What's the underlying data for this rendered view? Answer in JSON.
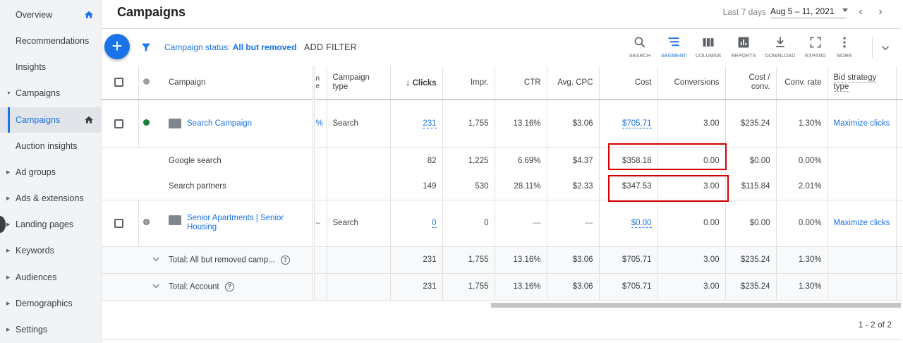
{
  "sidebar": {
    "items": [
      {
        "label": "Overview",
        "caret": false,
        "home": true,
        "active": false
      },
      {
        "label": "Recommendations",
        "caret": false,
        "home": false,
        "active": false
      },
      {
        "label": "Insights",
        "caret": false,
        "home": false,
        "active": false
      },
      {
        "label": "Campaigns",
        "caret": true,
        "caret_dir": "down",
        "home": false,
        "active": false
      },
      {
        "label": "Campaigns",
        "caret": false,
        "home": true,
        "active": true
      },
      {
        "label": "Auction insights",
        "caret": false,
        "home": false,
        "active": false
      },
      {
        "label": "Ad groups",
        "caret": true,
        "home": false,
        "active": false
      },
      {
        "label": "Ads & extensions",
        "caret": true,
        "home": false,
        "active": false
      },
      {
        "label": "Landing pages",
        "caret": true,
        "home": false,
        "active": false
      },
      {
        "label": "Keywords",
        "caret": true,
        "home": false,
        "active": false
      },
      {
        "label": "Audiences",
        "caret": true,
        "home": false,
        "active": false
      },
      {
        "label": "Demographics",
        "caret": true,
        "home": false,
        "active": false
      },
      {
        "label": "Settings",
        "caret": true,
        "home": false,
        "active": false
      }
    ]
  },
  "header": {
    "title": "Campaigns",
    "range_label": "Last 7 days",
    "dates": "Aug 5 – 11, 2021"
  },
  "toolbar": {
    "add": "+",
    "filter_prefix": "Campaign status: ",
    "filter_value": "All but removed",
    "add_filter": "ADD FILTER",
    "tools": [
      {
        "label": "SEARCH",
        "icon": "search-icon"
      },
      {
        "label": "SEGMENT",
        "icon": "segment-icon"
      },
      {
        "label": "COLUMNS",
        "icon": "columns-icon"
      },
      {
        "label": "REPORTS",
        "icon": "reports-icon"
      },
      {
        "label": "DOWNLOAD",
        "icon": "download-icon"
      },
      {
        "label": "EXPAND",
        "icon": "expand-icon"
      },
      {
        "label": "MORE",
        "icon": "more-icon"
      }
    ]
  },
  "table": {
    "headers": {
      "campaign": "Campaign",
      "hidden_partial": "n\ne",
      "campaign_type": "Campaign type",
      "clicks": "Clicks",
      "impr": "Impr.",
      "ctr": "CTR",
      "avg_cpc": "Avg. CPC",
      "cost": "Cost",
      "conversions": "Conversions",
      "cost_conv": "Cost / conv.",
      "conv_rate": "Conv. rate",
      "bid_strategy": "Bid strategy type"
    },
    "rows": [
      {
        "kind": "campaign",
        "status_color": "#188038",
        "name": "Search Campaign",
        "partial": "%",
        "type": "Search",
        "clicks": "231",
        "impr": "1,755",
        "ctr": "13.16%",
        "avg_cpc": "$3.06",
        "cost": "$705.71",
        "conversions": "3.00",
        "cost_conv": "$235.24",
        "conv_rate": "1.30%",
        "bid": "Maximize clicks"
      },
      {
        "kind": "segment",
        "name": "Google search",
        "clicks": "82",
        "impr": "1,225",
        "ctr": "6.69%",
        "avg_cpc": "$4.37",
        "cost": "$358.18",
        "conversions": "0.00",
        "cost_conv": "$0.00",
        "conv_rate": "0.00%"
      },
      {
        "kind": "segment",
        "name": "Search partners",
        "clicks": "149",
        "impr": "530",
        "ctr": "28.11%",
        "avg_cpc": "$2.33",
        "cost": "$347.53",
        "conversions": "3.00",
        "cost_conv": "$115.84",
        "conv_rate": "2.01%"
      },
      {
        "kind": "campaign",
        "status_color": "#80868b",
        "name": "Senior Apartments | Senior Housing",
        "partial": "–",
        "type": "Search",
        "clicks": "0",
        "impr": "0",
        "ctr": "—",
        "avg_cpc": "—",
        "cost": "$0.00",
        "conversions": "0.00",
        "cost_conv": "$0.00",
        "conv_rate": "0.00%",
        "bid": "Maximize clicks"
      }
    ],
    "totals": [
      {
        "label": "Total: All but removed camp...",
        "clicks": "231",
        "impr": "1,755",
        "ctr": "13.16%",
        "avg_cpc": "$3.06",
        "cost": "$705.71",
        "conversions": "3.00",
        "cost_conv": "$235.24",
        "conv_rate": "1.30%"
      },
      {
        "label": "Total: Account",
        "clicks": "231",
        "impr": "1,755",
        "ctr": "13.16%",
        "avg_cpc": "$3.06",
        "cost": "$705.71",
        "conversions": "3.00",
        "cost_conv": "$235.24",
        "conv_rate": "1.30%"
      }
    ]
  },
  "pager": "1 - 2 of 2",
  "colors": {
    "accent": "#1a73e8",
    "highlight": "#d50000",
    "sidebar_bg": "#f1f3f4"
  }
}
